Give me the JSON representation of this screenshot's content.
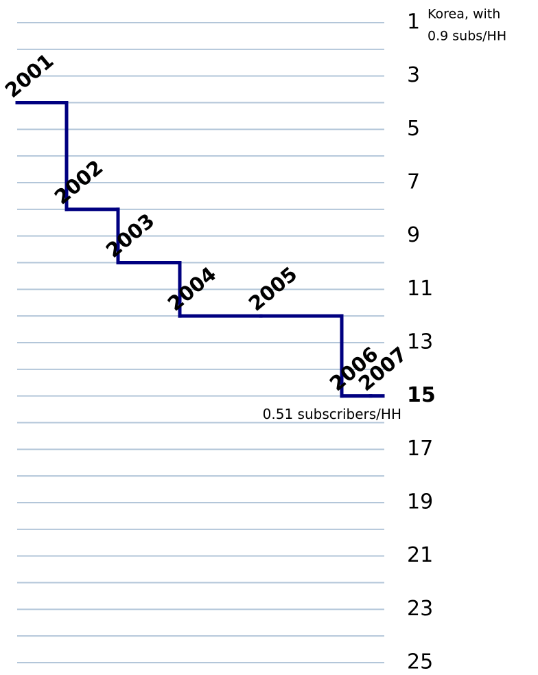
{
  "chart_data": {
    "type": "step",
    "categories": [
      "2001",
      "2002",
      "2003",
      "2004",
      "2005",
      "2006",
      "2007"
    ],
    "values": [
      4,
      8,
      10,
      12,
      12,
      15,
      15
    ],
    "color": "#000080",
    "ylim": [
      1,
      25
    ],
    "y_inverted": true,
    "yticks": [
      1,
      3,
      5,
      7,
      9,
      11,
      13,
      15,
      17,
      19,
      21,
      23,
      25
    ],
    "grid": true,
    "grid_color": "#b3c6d9",
    "highlight_tick": 15,
    "highlight_color": "#99c31c",
    "annotations": [
      {
        "lines": [
          "Korea, with",
          "0.9 subs/HH"
        ],
        "at": 1
      },
      {
        "lines": [
          "0.51 subscribers/HH"
        ],
        "at": 15
      }
    ]
  }
}
